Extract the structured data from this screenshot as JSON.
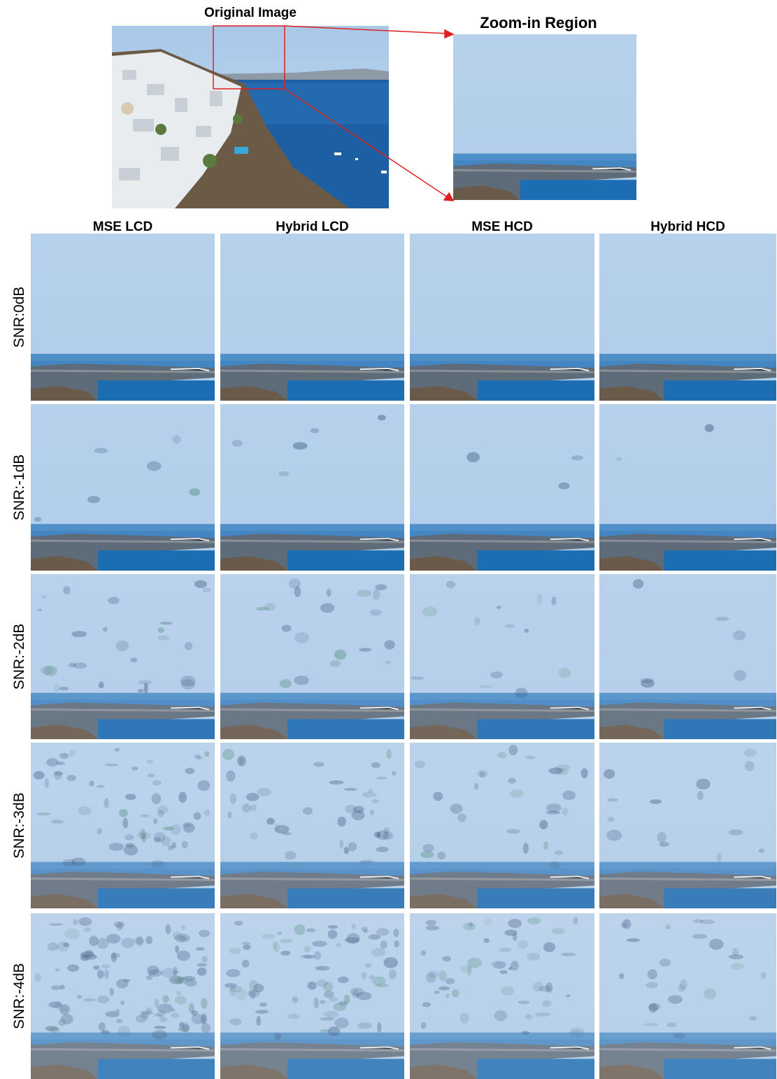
{
  "header": {
    "original_title": "Original Image",
    "zoom_title": "Zoom-in Region"
  },
  "columns": [
    "MSE LCD",
    "Hybrid LCD",
    "MSE HCD",
    "Hybrid HCD"
  ],
  "rows": [
    "SNR:0dB",
    "SNR:-1dB",
    "SNR:-2dB",
    "SNR:-3dB",
    "SNR:-4dB"
  ]
}
